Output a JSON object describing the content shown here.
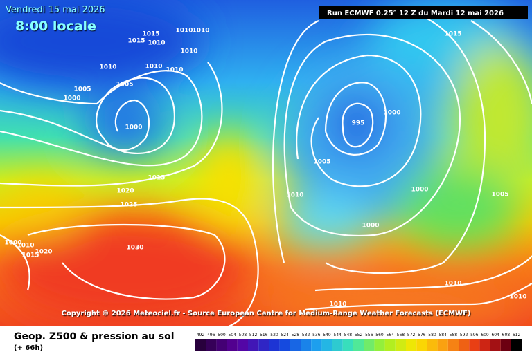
{
  "header": {
    "date": "Vendredi 15 mai 2026",
    "time": "8:00 locale",
    "run": "Run ECMWF 0.25° 12 Z du Mardi 12 mai 2026"
  },
  "isobar_labels": [
    "1015",
    "1015",
    "1010",
    "1010",
    "1010",
    "1010",
    "1010",
    "1010",
    "1010",
    "1005",
    "1000",
    "1005",
    "1000",
    "995",
    "1000",
    "1005",
    "1015",
    "1020",
    "1025",
    "1010",
    "1000",
    "1005",
    "1000",
    "1030",
    "1000",
    "1010",
    "1015",
    "1020",
    "1010",
    "1010",
    "1010",
    "1015"
  ],
  "copyright": "Copyright © 2026 Meteociel.fr - Source European Centre for Medium-Range Weather Forecasts (ECMWF)",
  "footer": {
    "title": "Geop. Z500 & pression au sol",
    "lead": "(+ 66h)"
  },
  "scale": [
    492,
    496,
    500,
    504,
    508,
    512,
    516,
    520,
    524,
    528,
    532,
    536,
    540,
    544,
    548,
    552,
    556,
    560,
    564,
    568,
    572,
    576,
    580,
    584,
    588,
    592,
    596,
    600,
    604,
    608,
    612
  ]
}
